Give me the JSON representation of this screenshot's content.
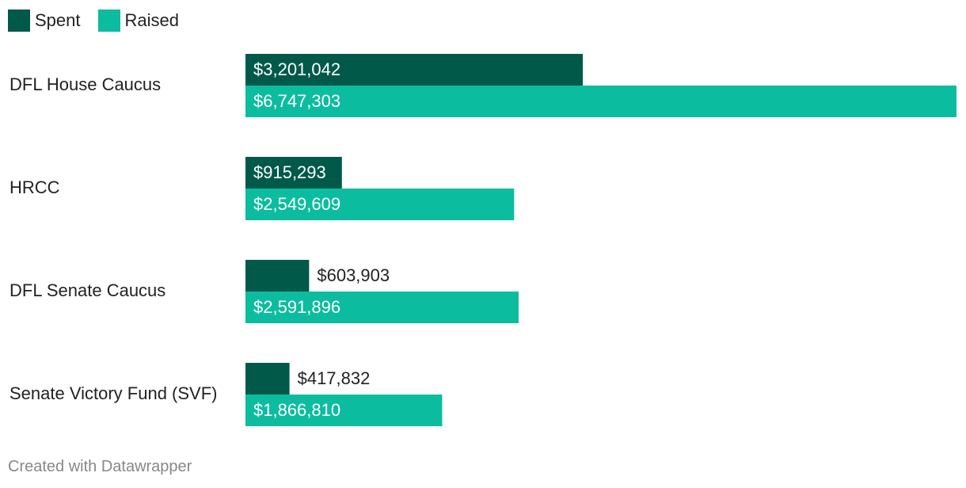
{
  "legend": [
    {
      "label": "Spent",
      "color": "#01594a"
    },
    {
      "label": "Raised",
      "color": "#0bbd9e"
    }
  ],
  "footer": {
    "text": "Created with Datawrapper"
  },
  "chart_data": {
    "type": "bar",
    "orientation": "horizontal",
    "categories": [
      "DFL House Caucus",
      "HRCC",
      "DFL Senate Caucus",
      "Senate Victory Fund (SVF)"
    ],
    "series": [
      {
        "name": "Spent",
        "color": "#01594a",
        "values": [
          3201042,
          915293,
          603903,
          417832
        ],
        "labels": [
          "$3,201,042",
          "$915,293",
          "$603,903",
          "$417,832"
        ]
      },
      {
        "name": "Raised",
        "color": "#0bbd9e",
        "values": [
          6747303,
          2549609,
          2591896,
          1866810
        ],
        "labels": [
          "$6,747,303",
          "$2,549,609",
          "$2,591,896",
          "$1,866,810"
        ]
      }
    ],
    "xlim": [
      0,
      6747303
    ],
    "title": "",
    "xlabel": "",
    "ylabel": "",
    "grid": false,
    "legend_position": "top-left"
  }
}
